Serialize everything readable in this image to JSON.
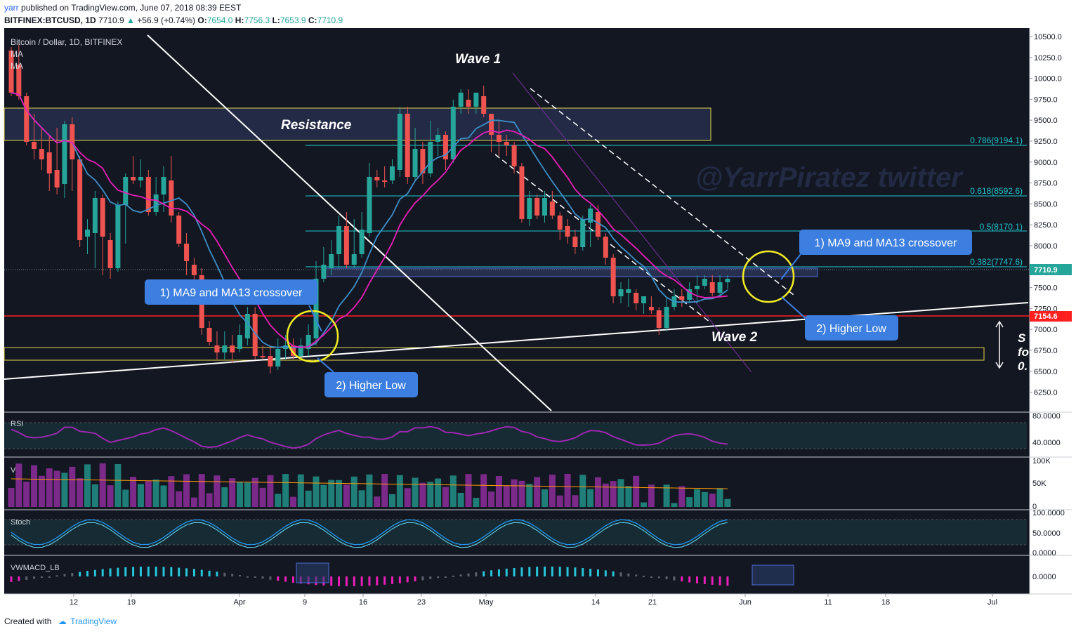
{
  "header": {
    "user": "yarr",
    "published": "published on TradingView.com, June 07, 2018 08:39 EEST",
    "symbol": "BITFINEX:BTCUSD, 1D",
    "last": "7710.9",
    "change_arrow": "▲",
    "change": "+56.9 (+0.74%)",
    "o_label": "O:",
    "o": "7654.0",
    "h_label": "H:",
    "h": "7756.3",
    "l_label": "L:",
    "l": "7653.9",
    "c_label": "C:",
    "c": "7710.9"
  },
  "legend": {
    "title": "Bitcoin / Dollar, 1D, BITFINEX",
    "ma1": "MA",
    "ma2": "MA"
  },
  "annotations": {
    "wave1": "Wave 1",
    "wave2": "Wave 2",
    "resistance": "Resistance",
    "crossover1": "1) MA9 and MA13 crossover",
    "higherlow1": "2) Higher Low",
    "crossover2": "1) MA9 and MA13 crossover",
    "higherlow2": "2) Higher Low",
    "watermark": "@YarrPiratez twitter",
    "cutoff": [
      "S",
      "fo",
      "0."
    ]
  },
  "fib": {
    "f786": "0.786(9194.1)",
    "f618": "0.618(8592.6)",
    "f5": "0.5(8170.1)",
    "f382": "0.382(7747.6)"
  },
  "price_axis": [
    "10500.0",
    "10250.0",
    "10000.0",
    "9750.0",
    "9500.0",
    "9250.0",
    "9000.0",
    "8750.0",
    "8500.0",
    "8250.0",
    "8000.0",
    "7750.0",
    "7500.0",
    "7250.0",
    "7000.0",
    "6750.0",
    "6500.0",
    "6250.0"
  ],
  "price_tags": {
    "last": "7710.9",
    "level": "7154.6"
  },
  "time_axis": [
    "12",
    "19",
    "Apr",
    "9",
    "16",
    "23",
    "May",
    "14",
    "21",
    "Jun",
    "11",
    "18",
    "Jul"
  ],
  "panes": {
    "rsi": {
      "label": "RSI",
      "ticks": [
        "80.0000",
        "40.0000"
      ]
    },
    "vol": {
      "label": "Vol",
      "ticks": [
        "100K",
        "50K",
        "0"
      ]
    },
    "stoch": {
      "label": "Stoch",
      "ticks": [
        "100.0000",
        "50.0000",
        "0.0000"
      ]
    },
    "macd": {
      "label": "VWMACD_LB",
      "ticks": [
        "0.0000"
      ]
    }
  },
  "colors": {
    "background": "#131722",
    "bull": "#26a69a",
    "bear": "#ef5350",
    "ma_fast": "#e91eb8",
    "ma_slow": "#3d8fc9",
    "rsi": "#9c27b0",
    "fib": "#1ec8d0",
    "support_box": "#ffeb3b",
    "level": "#ff1f1f",
    "callout": "#3d7fe0"
  },
  "footer": {
    "created_with": "Created with",
    "brand": "TradingView"
  }
}
